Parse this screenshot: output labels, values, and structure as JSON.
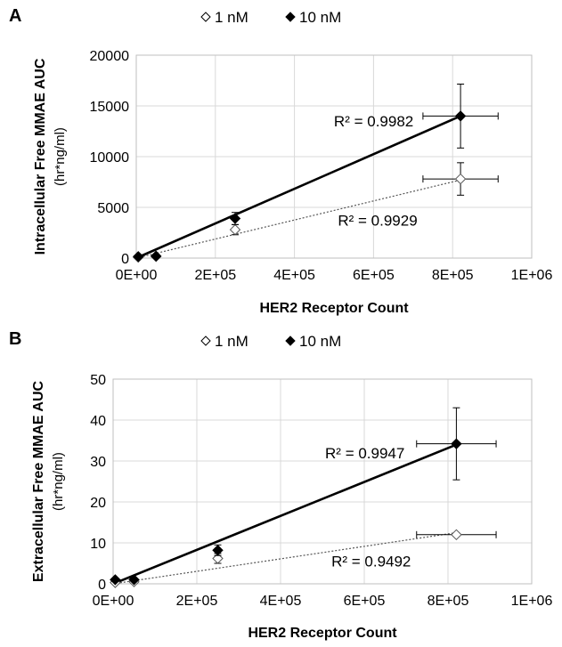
{
  "legend": {
    "series": [
      {
        "name": "1 nM",
        "marker": "open-diamond"
      },
      {
        "name": "10 nM",
        "marker": "filled-diamond"
      }
    ]
  },
  "chart_data": [
    {
      "panel_label": "A",
      "type": "scatter",
      "xlabel": "HER2 Receptor Count",
      "ylabel": "Intracellular Free MMAE AUC",
      "ylabel_unit": "(hr*ng/ml)",
      "xlim": [
        0,
        1000000
      ],
      "ylim": [
        0,
        20000
      ],
      "x_ticks": [
        {
          "value": 0,
          "label": "0E+00"
        },
        {
          "value": 200000,
          "label": "2E+05"
        },
        {
          "value": 400000,
          "label": "4E+05"
        },
        {
          "value": 600000,
          "label": "6E+05"
        },
        {
          "value": 800000,
          "label": "8E+05"
        },
        {
          "value": 1000000,
          "label": "1E+06"
        }
      ],
      "y_ticks": [
        {
          "value": 0,
          "label": "0"
        },
        {
          "value": 5000,
          "label": "5000"
        },
        {
          "value": 10000,
          "label": "10000"
        },
        {
          "value": 15000,
          "label": "15000"
        },
        {
          "value": 20000,
          "label": "20000"
        }
      ],
      "grid": true,
      "series": [
        {
          "name": "1 nM",
          "marker": "open-diamond",
          "trendline": {
            "style": "dotted",
            "from": [
              0,
              0
            ],
            "to": [
              820000,
              7700
            ]
          },
          "points": [
            {
              "x": 5000,
              "y": 80,
              "yerr": 50,
              "xerr": 0
            },
            {
              "x": 50000,
              "y": 150,
              "yerr": 60,
              "xerr": 0
            },
            {
              "x": 250000,
              "y": 2800,
              "yerr": 500,
              "xerr": 0
            },
            {
              "x": 820000,
              "y": 7800,
              "yerr": 1600,
              "xerr": 95000
            }
          ]
        },
        {
          "name": "10 nM",
          "marker": "filled-diamond",
          "trendline": {
            "style": "solid",
            "from": [
              0,
              0
            ],
            "to": [
              820000,
              14000
            ]
          },
          "points": [
            {
              "x": 5000,
              "y": 150,
              "yerr": 80,
              "xerr": 0
            },
            {
              "x": 50000,
              "y": 200,
              "yerr": 100,
              "xerr": 0
            },
            {
              "x": 250000,
              "y": 3900,
              "yerr": 600,
              "xerr": 0
            },
            {
              "x": 820000,
              "y": 14000,
              "yerr": 3150,
              "xerr": 95000
            }
          ]
        }
      ],
      "annotations": [
        {
          "text": "R² = 0.9982",
          "series": "10 nM",
          "anchor_x": 710000,
          "anchor_y": 13500
        },
        {
          "text": "R² = 0.9929",
          "series": "1 nM",
          "anchor_x": 720000,
          "anchor_y": 3750
        }
      ]
    },
    {
      "panel_label": "B",
      "type": "scatter",
      "xlabel": "HER2 Receptor Count",
      "ylabel": "Extracellular Free MMAE AUC",
      "ylabel_unit": "(hr*ng/ml)",
      "xlim": [
        0,
        1000000
      ],
      "ylim": [
        0,
        50
      ],
      "x_ticks": [
        {
          "value": 0,
          "label": "0E+00"
        },
        {
          "value": 200000,
          "label": "2E+05"
        },
        {
          "value": 400000,
          "label": "4E+05"
        },
        {
          "value": 600000,
          "label": "6E+05"
        },
        {
          "value": 800000,
          "label": "8E+05"
        },
        {
          "value": 1000000,
          "label": "1E+06"
        }
      ],
      "y_ticks": [
        {
          "value": 0,
          "label": "0"
        },
        {
          "value": 10,
          "label": "10"
        },
        {
          "value": 20,
          "label": "20"
        },
        {
          "value": 30,
          "label": "30"
        },
        {
          "value": 40,
          "label": "40"
        },
        {
          "value": 50,
          "label": "50"
        }
      ],
      "grid": true,
      "series": [
        {
          "name": "1 nM",
          "marker": "open-diamond",
          "trendline": {
            "style": "dotted",
            "from": [
              0,
              0
            ],
            "to": [
              820000,
              12.5
            ]
          },
          "points": [
            {
              "x": 5000,
              "y": 0.3,
              "yerr": 0.2,
              "xerr": 0
            },
            {
              "x": 50000,
              "y": 0.5,
              "yerr": 0.3,
              "xerr": 0
            },
            {
              "x": 250000,
              "y": 6.2,
              "yerr": 1.2,
              "xerr": 0
            },
            {
              "x": 820000,
              "y": 12,
              "yerr": 0.4,
              "xerr": 95000
            }
          ]
        },
        {
          "name": "10 nM",
          "marker": "filled-diamond",
          "trendline": {
            "style": "solid",
            "from": [
              0,
              0
            ],
            "to": [
              820000,
              34
            ]
          },
          "points": [
            {
              "x": 5000,
              "y": 1,
              "yerr": 0.4,
              "xerr": 0
            },
            {
              "x": 50000,
              "y": 1,
              "yerr": 0.4,
              "xerr": 0
            },
            {
              "x": 250000,
              "y": 8.2,
              "yerr": 1.3,
              "xerr": 0
            },
            {
              "x": 820000,
              "y": 34.2,
              "yerr": 8.8,
              "xerr": 95000
            }
          ]
        }
      ],
      "annotations": [
        {
          "text": "R² = 0.9947",
          "series": "10 nM",
          "anchor_x": 705000,
          "anchor_y": 32
        },
        {
          "text": "R² = 0.9492",
          "series": "1 nM",
          "anchor_x": 720000,
          "anchor_y": 5.5
        }
      ]
    }
  ]
}
